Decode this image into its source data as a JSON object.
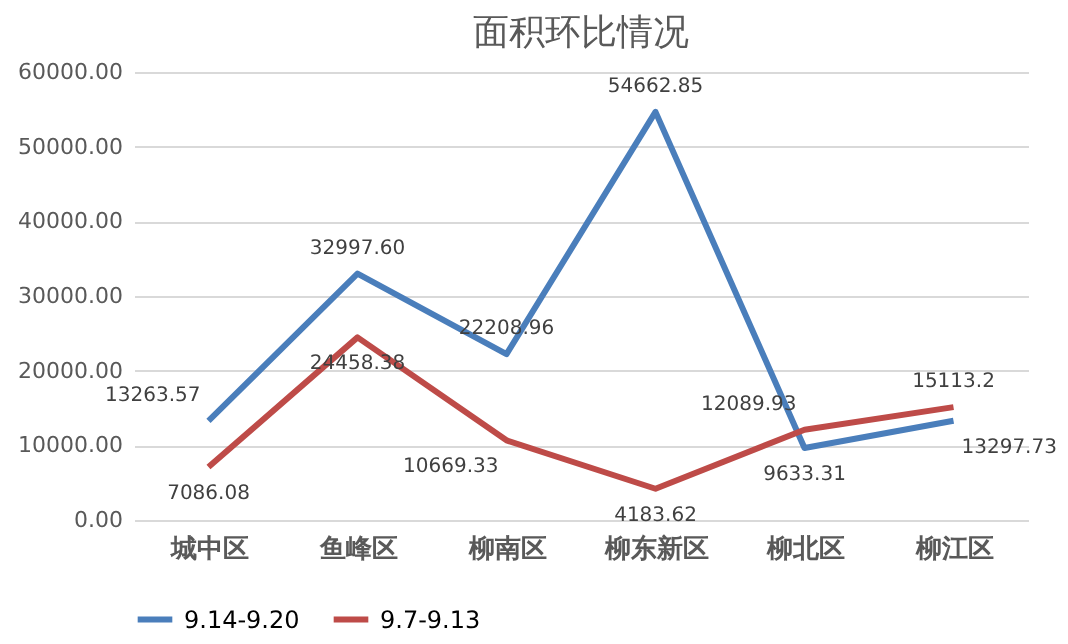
{
  "chart_data": {
    "type": "line",
    "title": "面积环比情况",
    "categories": [
      "城中区",
      "鱼峰区",
      "柳南区",
      "柳东新区",
      "柳北区",
      "柳江区"
    ],
    "series": [
      {
        "name": "9.14-9.20",
        "color": "#4a7ebb",
        "values": [
          13263.57,
          32997.6,
          22208.96,
          54662.85,
          9633.31,
          13297.73
        ],
        "value_labels": [
          "13263.57",
          "32997.60",
          "22208.96",
          "54662.85",
          "9633.31",
          "13297.73"
        ]
      },
      {
        "name": "9.7-9.13",
        "color": "#be4b48",
        "values": [
          7086.08,
          24458.38,
          10669.33,
          4183.62,
          12089.93,
          15113.2
        ],
        "value_labels": [
          "7086.08",
          "24458.38",
          "10669.33",
          "4183.62",
          "12089.93",
          "15113.2"
        ]
      }
    ],
    "ylim": [
      0,
      60000
    ],
    "yticks": [
      {
        "value": 0,
        "label": "0.00"
      },
      {
        "value": 10000,
        "label": "10000.00"
      },
      {
        "value": 20000,
        "label": "20000.00"
      },
      {
        "value": 30000,
        "label": "30000.00"
      },
      {
        "value": 40000,
        "label": "40000.00"
      },
      {
        "value": 50000,
        "label": "50000.00"
      },
      {
        "value": 60000,
        "label": "60000.00"
      }
    ],
    "grid": "y",
    "legend": "bottom",
    "marker": "none",
    "line_style": "solid"
  }
}
